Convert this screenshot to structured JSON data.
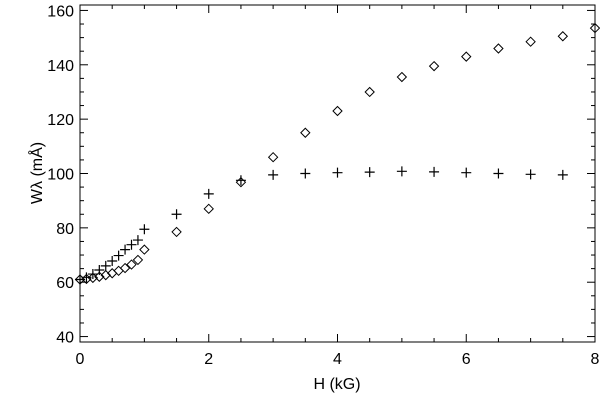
{
  "chart_data": {
    "type": "scatter",
    "title": "",
    "xlabel": "H  (kG)",
    "ylabel": "Wλ (mÅ)",
    "xlim": [
      0,
      8
    ],
    "ylim": [
      38,
      162
    ],
    "xticks": [
      0,
      2,
      4,
      6,
      8
    ],
    "xtick_labels": [
      "0",
      "2",
      "4",
      "6",
      "8"
    ],
    "yticks": [
      40,
      60,
      80,
      100,
      120,
      140,
      160
    ],
    "ytick_labels": [
      "40",
      "60",
      "80",
      "100",
      "120",
      "140",
      "160"
    ],
    "grid": false,
    "series": [
      {
        "marker": "diamond",
        "x": [
          0.0,
          0.1,
          0.2,
          0.3,
          0.4,
          0.5,
          0.6,
          0.7,
          0.8,
          0.9,
          1.0,
          1.5,
          2.0,
          2.5,
          3.0,
          3.5,
          4.0,
          4.5,
          5.0,
          5.5,
          6.0,
          6.5,
          7.0,
          7.5,
          8.0
        ],
        "y": [
          61.0,
          61.2,
          61.6,
          62.0,
          62.6,
          63.3,
          64.2,
          65.2,
          66.5,
          68.2,
          72.0,
          78.5,
          87.0,
          96.8,
          106.0,
          115.0,
          123.0,
          130.0,
          135.5,
          139.5,
          143.0,
          146.0,
          148.5,
          150.5,
          153.5
        ]
      },
      {
        "marker": "plus",
        "x": [
          0.0,
          0.1,
          0.2,
          0.3,
          0.4,
          0.5,
          0.6,
          0.7,
          0.8,
          0.9,
          1.0,
          1.5,
          2.0,
          2.5,
          3.0,
          3.5,
          4.0,
          4.5,
          5.0,
          5.5,
          6.0,
          6.5,
          7.0,
          7.5
        ],
        "y": [
          61.0,
          61.8,
          63.0,
          64.5,
          66.0,
          67.8,
          69.8,
          72.0,
          73.8,
          75.5,
          79.5,
          85.0,
          92.5,
          97.5,
          99.5,
          100.0,
          100.3,
          100.5,
          100.8,
          100.6,
          100.3,
          100.0,
          99.7,
          99.5
        ]
      }
    ]
  }
}
